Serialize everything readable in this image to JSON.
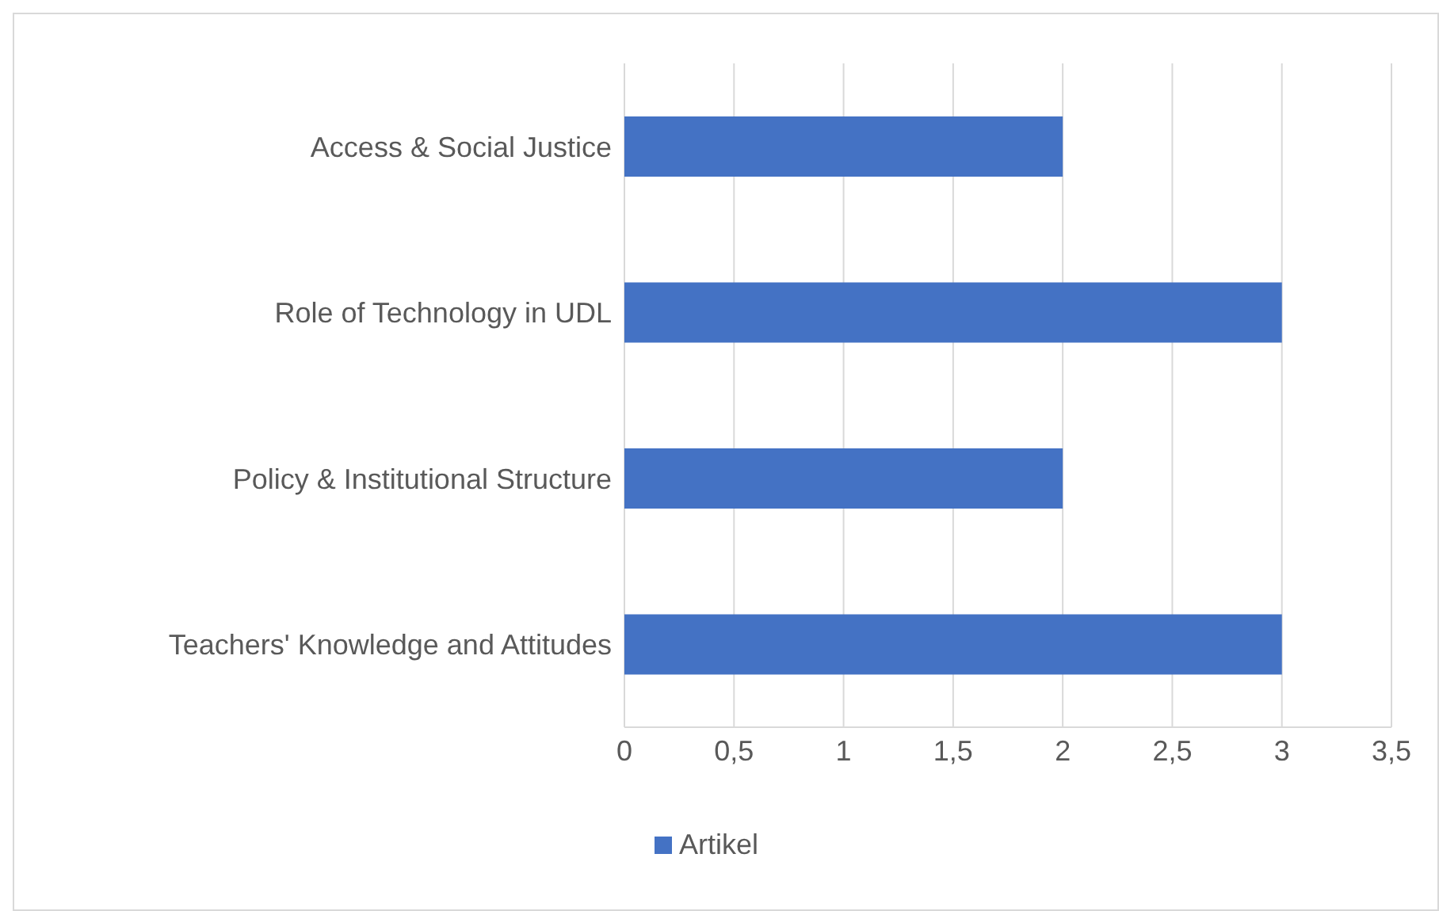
{
  "chart_data": {
    "type": "bar",
    "orientation": "horizontal",
    "categories": [
      "Access & Social Justice",
      "Role of Technology in UDL",
      "Policy & Institutional Structure",
      "Teachers' Knowledge and Attitudes"
    ],
    "series": [
      {
        "name": "Artikel",
        "color": "#4472c4",
        "values": [
          2,
          3,
          2,
          3
        ]
      }
    ],
    "xlim": [
      0,
      3.5
    ],
    "xticks": [
      0,
      {
        "value": 0.5,
        "label": "0,5"
      },
      1,
      {
        "value": 1.5,
        "label": "1,5"
      },
      2,
      {
        "value": 2.5,
        "label": "2,5"
      },
      3,
      {
        "value": 3.5,
        "label": "3,5"
      }
    ],
    "grid": "x",
    "legend": "bottom"
  }
}
